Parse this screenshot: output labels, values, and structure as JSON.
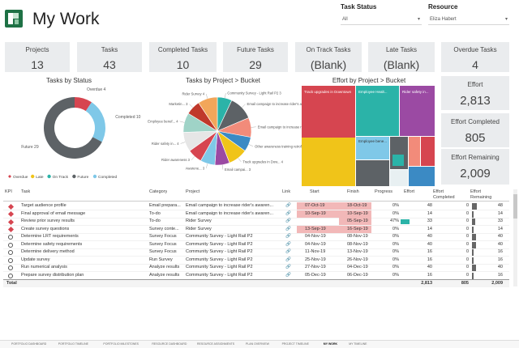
{
  "page": {
    "title": "My Work"
  },
  "filters": [
    {
      "label": "Task Status",
      "value": "All"
    },
    {
      "label": "Resource",
      "value": "Eliza Habert"
    }
  ],
  "kpis_top": [
    {
      "label": "Projects",
      "value": "13"
    },
    {
      "label": "Tasks",
      "value": "43"
    },
    {
      "label": "Completed Tasks",
      "value": "10"
    },
    {
      "label": "Future Tasks",
      "value": "29"
    },
    {
      "label": "On Track Tasks",
      "value": "(Blank)"
    },
    {
      "label": "Late Tasks",
      "value": "(Blank)"
    },
    {
      "label": "Overdue Tasks",
      "value": "4"
    }
  ],
  "kpis_side": [
    {
      "label": "Effort",
      "value": "2,813"
    },
    {
      "label": "Effort Completed",
      "value": "805"
    },
    {
      "label": "Effort Remaining",
      "value": "2,009"
    }
  ],
  "colors": {
    "overdue": "#d64550",
    "late": "#f0c419",
    "ontrack": "#2bb3a8",
    "future": "#5d6266",
    "completed": "#7fc8e8"
  },
  "chart_data": [
    {
      "type": "pie",
      "title": "Tasks by Status",
      "donut": true,
      "categories": [
        "Overdue",
        "Completed",
        "Future"
      ],
      "values": [
        4,
        10,
        29
      ],
      "slice_labels": [
        "Overdue 4",
        "Completed 10",
        "Future 29"
      ],
      "legend": [
        "Overdue",
        "Late",
        "On Track",
        "Future",
        "Completed"
      ],
      "legend_position": "bottom"
    },
    {
      "type": "pie",
      "title": "Tasks by Project > Bucket",
      "categories": [
        "Community Survey - Light Rail P2",
        "Email campaign to increase rider's awareness",
        "Email campaign to increase rider's awareness 2",
        "Other awareness training retrofit",
        "Track upgrades in Downtown",
        "Email campaign",
        "Awareness task group",
        "Rider awareness",
        "Rider safety in",
        "Employee benef",
        "Marketin",
        "Rider Survey"
      ],
      "values": [
        3,
        5,
        4,
        3,
        4,
        3,
        3,
        3,
        4,
        4,
        3,
        4
      ],
      "slice_labels": [
        "Community Survey - Light Rail P2",
        "Email campaign to increase rider's aware...",
        "Email campaign to increase ri...",
        "Other awareness training retrofit",
        "Track upgrades in Dow...",
        "Email campai...",
        "Awarene...",
        "Rider awareness",
        "Rider safety in...",
        "Employee benef...",
        "Marketin...",
        "Rider Survey"
      ],
      "slice_values": [
        "3",
        "5",
        "4",
        "3",
        "4",
        "3",
        "3",
        "3",
        "4",
        "4",
        "3",
        "4"
      ]
    },
    {
      "type": "heatmap",
      "title": "Effort by Project > Bucket",
      "tiles": [
        {
          "label": "Track upgrades in Downtown",
          "value": 1
        },
        {
          "label": "Employee Healt...",
          "value": 1
        },
        {
          "label": "Rider safety in...",
          "value": 1
        },
        {
          "label": "Employee bene...",
          "value": 1
        }
      ]
    }
  ],
  "table": {
    "headers": {
      "status": "KPI",
      "task": "Task",
      "category": "Category",
      "project": "Project",
      "link": "Link",
      "start": "Start",
      "finish": "Finish",
      "progress": "Progress",
      "effort": "Effort",
      "effort_completed": "Effort Completed",
      "effort_remaining": "Effort Remaining"
    },
    "rows": [
      {
        "status": "overdue",
        "task": "Target audience profile",
        "category": "Email prepara...",
        "project": "Email campaign to increase rider's awaren...",
        "link": "🔗",
        "start": "07-Oct-19",
        "finish": "18-Oct-19",
        "progress": "0%",
        "progress_value": 0,
        "effort": "48",
        "effort_completed": "0",
        "effort_remaining": "48",
        "late_start": true,
        "late_finish": true
      },
      {
        "status": "overdue",
        "task": "Final approval of email message",
        "category": "To-do",
        "project": "Email campaign to increase rider's awaren...",
        "link": "🔗",
        "start": "10-Sep-19",
        "finish": "10-Sep-19",
        "progress": "0%",
        "progress_value": 0,
        "effort": "14",
        "effort_completed": "0",
        "effort_remaining": "14",
        "late_start": true,
        "late_finish": true
      },
      {
        "status": "overdue",
        "task": "Review prior survey results",
        "category": "To-do",
        "project": "Rider Survey",
        "link": "🔗",
        "start": "",
        "finish": "05-Sep-19",
        "progress": "47%",
        "progress_value": 0.47,
        "effort": "33",
        "effort_completed": "0",
        "effort_remaining": "33",
        "late_start": false,
        "late_finish": true
      },
      {
        "status": "overdue",
        "task": "Create survey questions",
        "category": "Survey conte...",
        "project": "Rider Survey",
        "link": "🔗",
        "start": "13-Sep-19",
        "finish": "16-Sep-19",
        "progress": "0%",
        "progress_value": 0,
        "effort": "14",
        "effort_completed": "0",
        "effort_remaining": "14",
        "late_start": true,
        "late_finish": true
      },
      {
        "status": "future",
        "task": "Determine LRT requirements",
        "category": "Survey Focus",
        "project": "Community Survey - Light Rail P2",
        "link": "🔗",
        "start": "04-Nov-19",
        "finish": "08-Nov-19",
        "progress": "0%",
        "progress_value": 0,
        "effort": "40",
        "effort_completed": "0",
        "effort_remaining": "40",
        "late_start": false,
        "late_finish": false
      },
      {
        "status": "future",
        "task": "Determine safety requirements",
        "category": "Survey Focus",
        "project": "Community Survey - Light Rail P2",
        "link": "🔗",
        "start": "04-Nov-19",
        "finish": "08-Nov-19",
        "progress": "0%",
        "progress_value": 0,
        "effort": "40",
        "effort_completed": "0",
        "effort_remaining": "40",
        "late_start": false,
        "late_finish": false
      },
      {
        "status": "future",
        "task": "Determine delivery method",
        "category": "Survey Focus",
        "project": "Community Survey - Light Rail P2",
        "link": "🔗",
        "start": "11-Nov-19",
        "finish": "13-Nov-19",
        "progress": "0%",
        "progress_value": 0,
        "effort": "16",
        "effort_completed": "0",
        "effort_remaining": "16",
        "late_start": false,
        "late_finish": false
      },
      {
        "status": "future",
        "task": "Update survey",
        "category": "Run Survey",
        "project": "Community Survey - Light Rail P2",
        "link": "🔗",
        "start": "25-Nov-19",
        "finish": "26-Nov-19",
        "progress": "0%",
        "progress_value": 0,
        "effort": "16",
        "effort_completed": "0",
        "effort_remaining": "16",
        "late_start": false,
        "late_finish": false
      },
      {
        "status": "future",
        "task": "Run numerical analysis",
        "category": "Analyze results",
        "project": "Community Survey - Light Rail P2",
        "link": "🔗",
        "start": "27-Nov-19",
        "finish": "04-Dec-19",
        "progress": "0%",
        "progress_value": 0,
        "effort": "40",
        "effort_completed": "0",
        "effort_remaining": "40",
        "late_start": false,
        "late_finish": false
      },
      {
        "status": "future",
        "task": "Prepare survey distribution plan",
        "category": "Analyze results",
        "project": "Community Survey - Light Rail P2",
        "link": "🔗",
        "start": "05-Dec-19",
        "finish": "06-Dec-19",
        "progress": "0%",
        "progress_value": 0,
        "effort": "16",
        "effort_completed": "0",
        "effort_remaining": "16",
        "late_start": false,
        "late_finish": false
      }
    ],
    "total": {
      "label": "Total",
      "effort": "2,813",
      "effort_completed": "805",
      "effort_remaining": "2,009"
    }
  },
  "tabs": [
    {
      "label": "PORTFOLIO DASHBOARD",
      "active": false
    },
    {
      "label": "PORTFOLIO TIMELINE",
      "active": false
    },
    {
      "label": "PORTFOLIO MILESTONES",
      "active": false
    },
    {
      "label": "RESOURCE DASHBOARD",
      "active": false
    },
    {
      "label": "RESOURCE ASSIGNMENTS",
      "active": false
    },
    {
      "label": "PLAN OVERVIEW",
      "active": false
    },
    {
      "label": "PROJECT TIMELINE",
      "active": false
    },
    {
      "label": "MY WORK",
      "active": true
    },
    {
      "label": "MY TIMELINE",
      "active": false
    }
  ]
}
